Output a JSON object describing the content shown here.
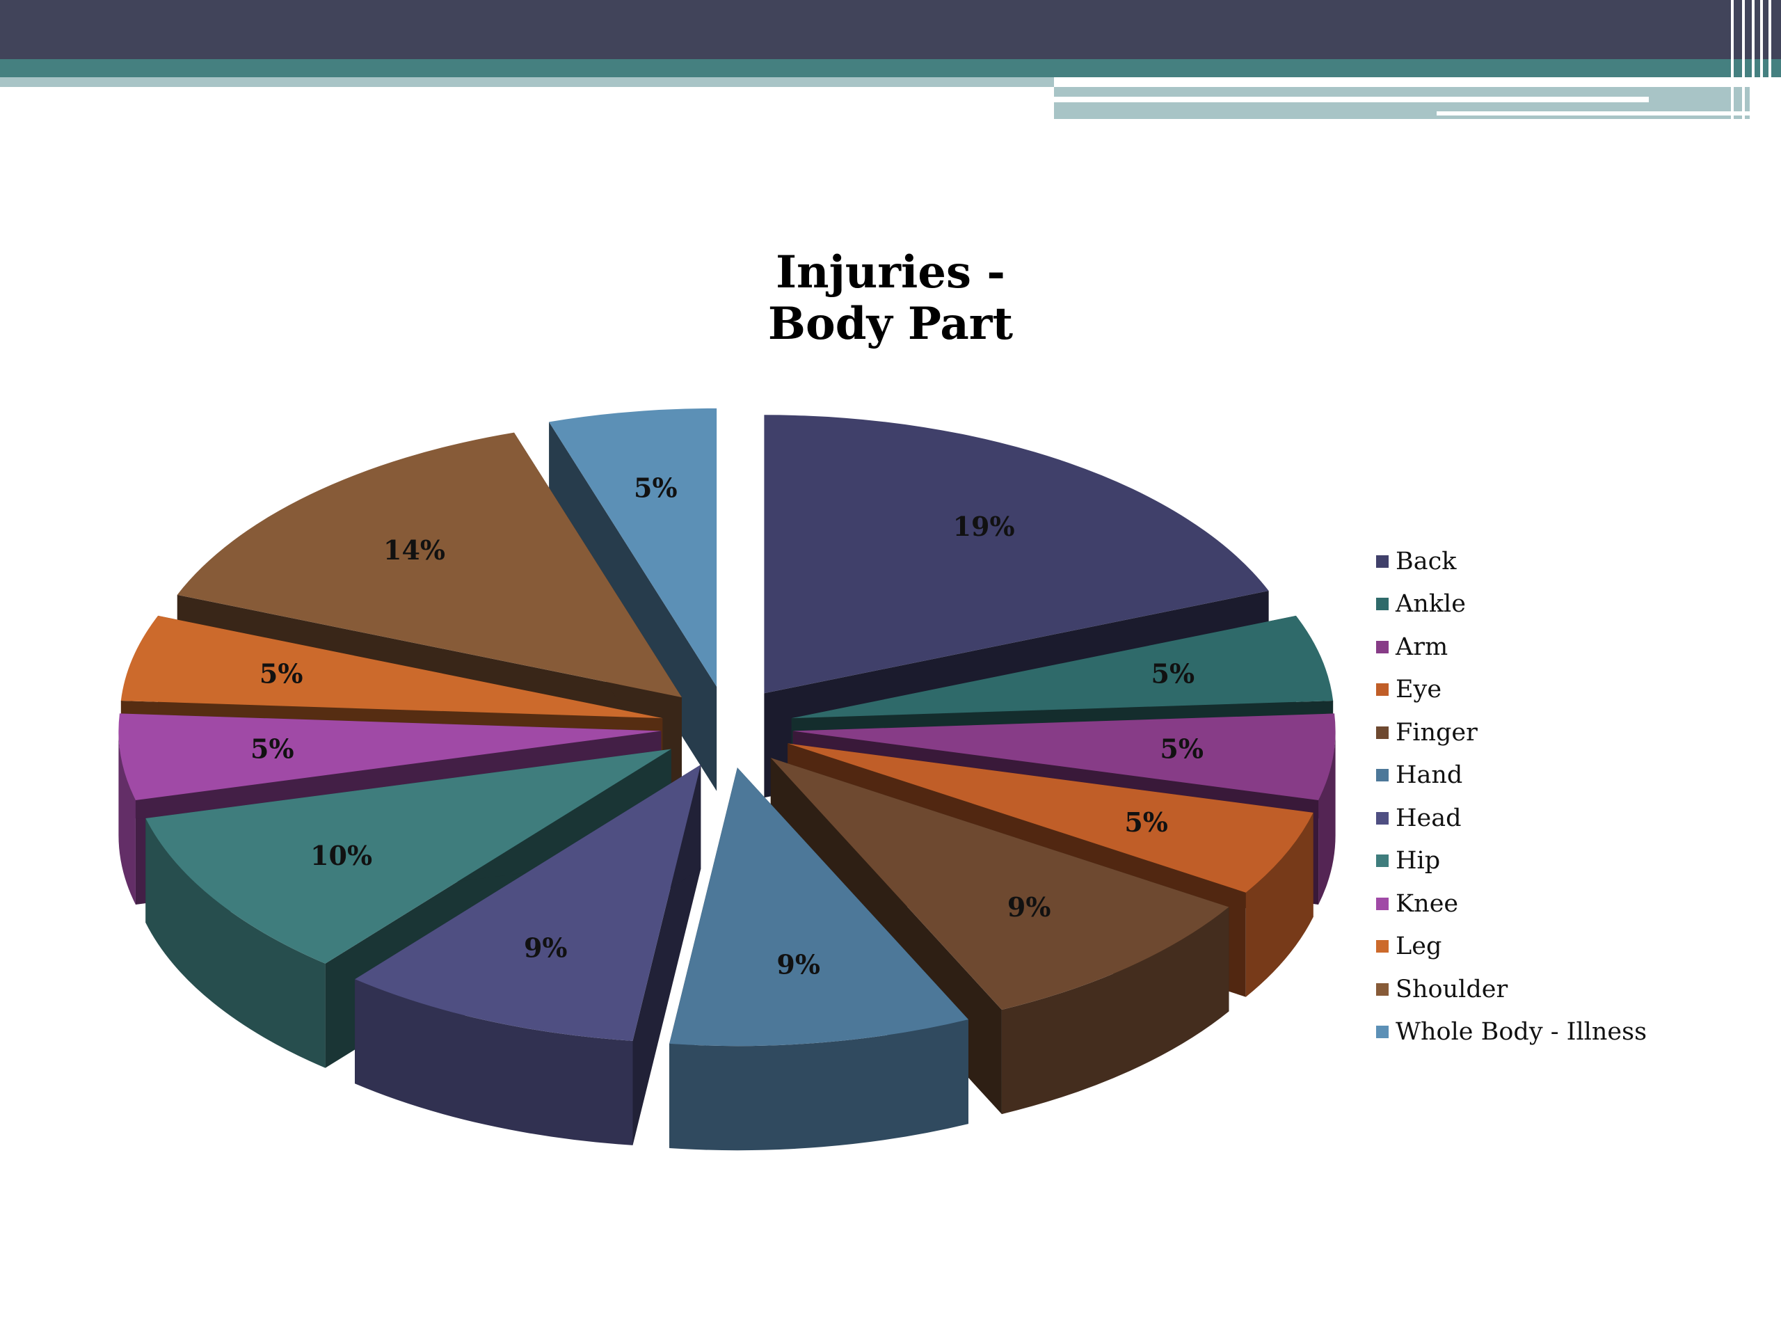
{
  "chart_data": {
    "type": "pie",
    "title_lines": [
      "Injuries -",
      "Body Part"
    ],
    "legend_position": "right",
    "slices": [
      {
        "name": "Back",
        "value": 19,
        "label": "19%",
        "color": "#40406a"
      },
      {
        "name": "Ankle",
        "value": 5,
        "label": "5%",
        "color": "#2f6a6a"
      },
      {
        "name": "Arm",
        "value": 5,
        "label": "5%",
        "color": "#873c87"
      },
      {
        "name": "Eye",
        "value": 5,
        "label": "5%",
        "color": "#c05e28"
      },
      {
        "name": "Finger",
        "value": 9,
        "label": "9%",
        "color": "#6e4930"
      },
      {
        "name": "Hand",
        "value": 9,
        "label": "9%",
        "color": "#4d7899"
      },
      {
        "name": "Head",
        "value": 9,
        "label": "9%",
        "color": "#4f4f82"
      },
      {
        "name": "Hip",
        "value": 10,
        "label": "10%",
        "color": "#3f7d7d"
      },
      {
        "name": "Knee",
        "value": 5,
        "label": "5%",
        "color": "#a04aa6"
      },
      {
        "name": "Leg",
        "value": 5,
        "label": "5%",
        "color": "#cc6a2c"
      },
      {
        "name": "Shoulder",
        "value": 14,
        "label": "14%",
        "color": "#875b38"
      },
      {
        "name": "Whole Body - Illness",
        "value": 5,
        "label": "5%",
        "color": "#5c90b6"
      }
    ]
  }
}
